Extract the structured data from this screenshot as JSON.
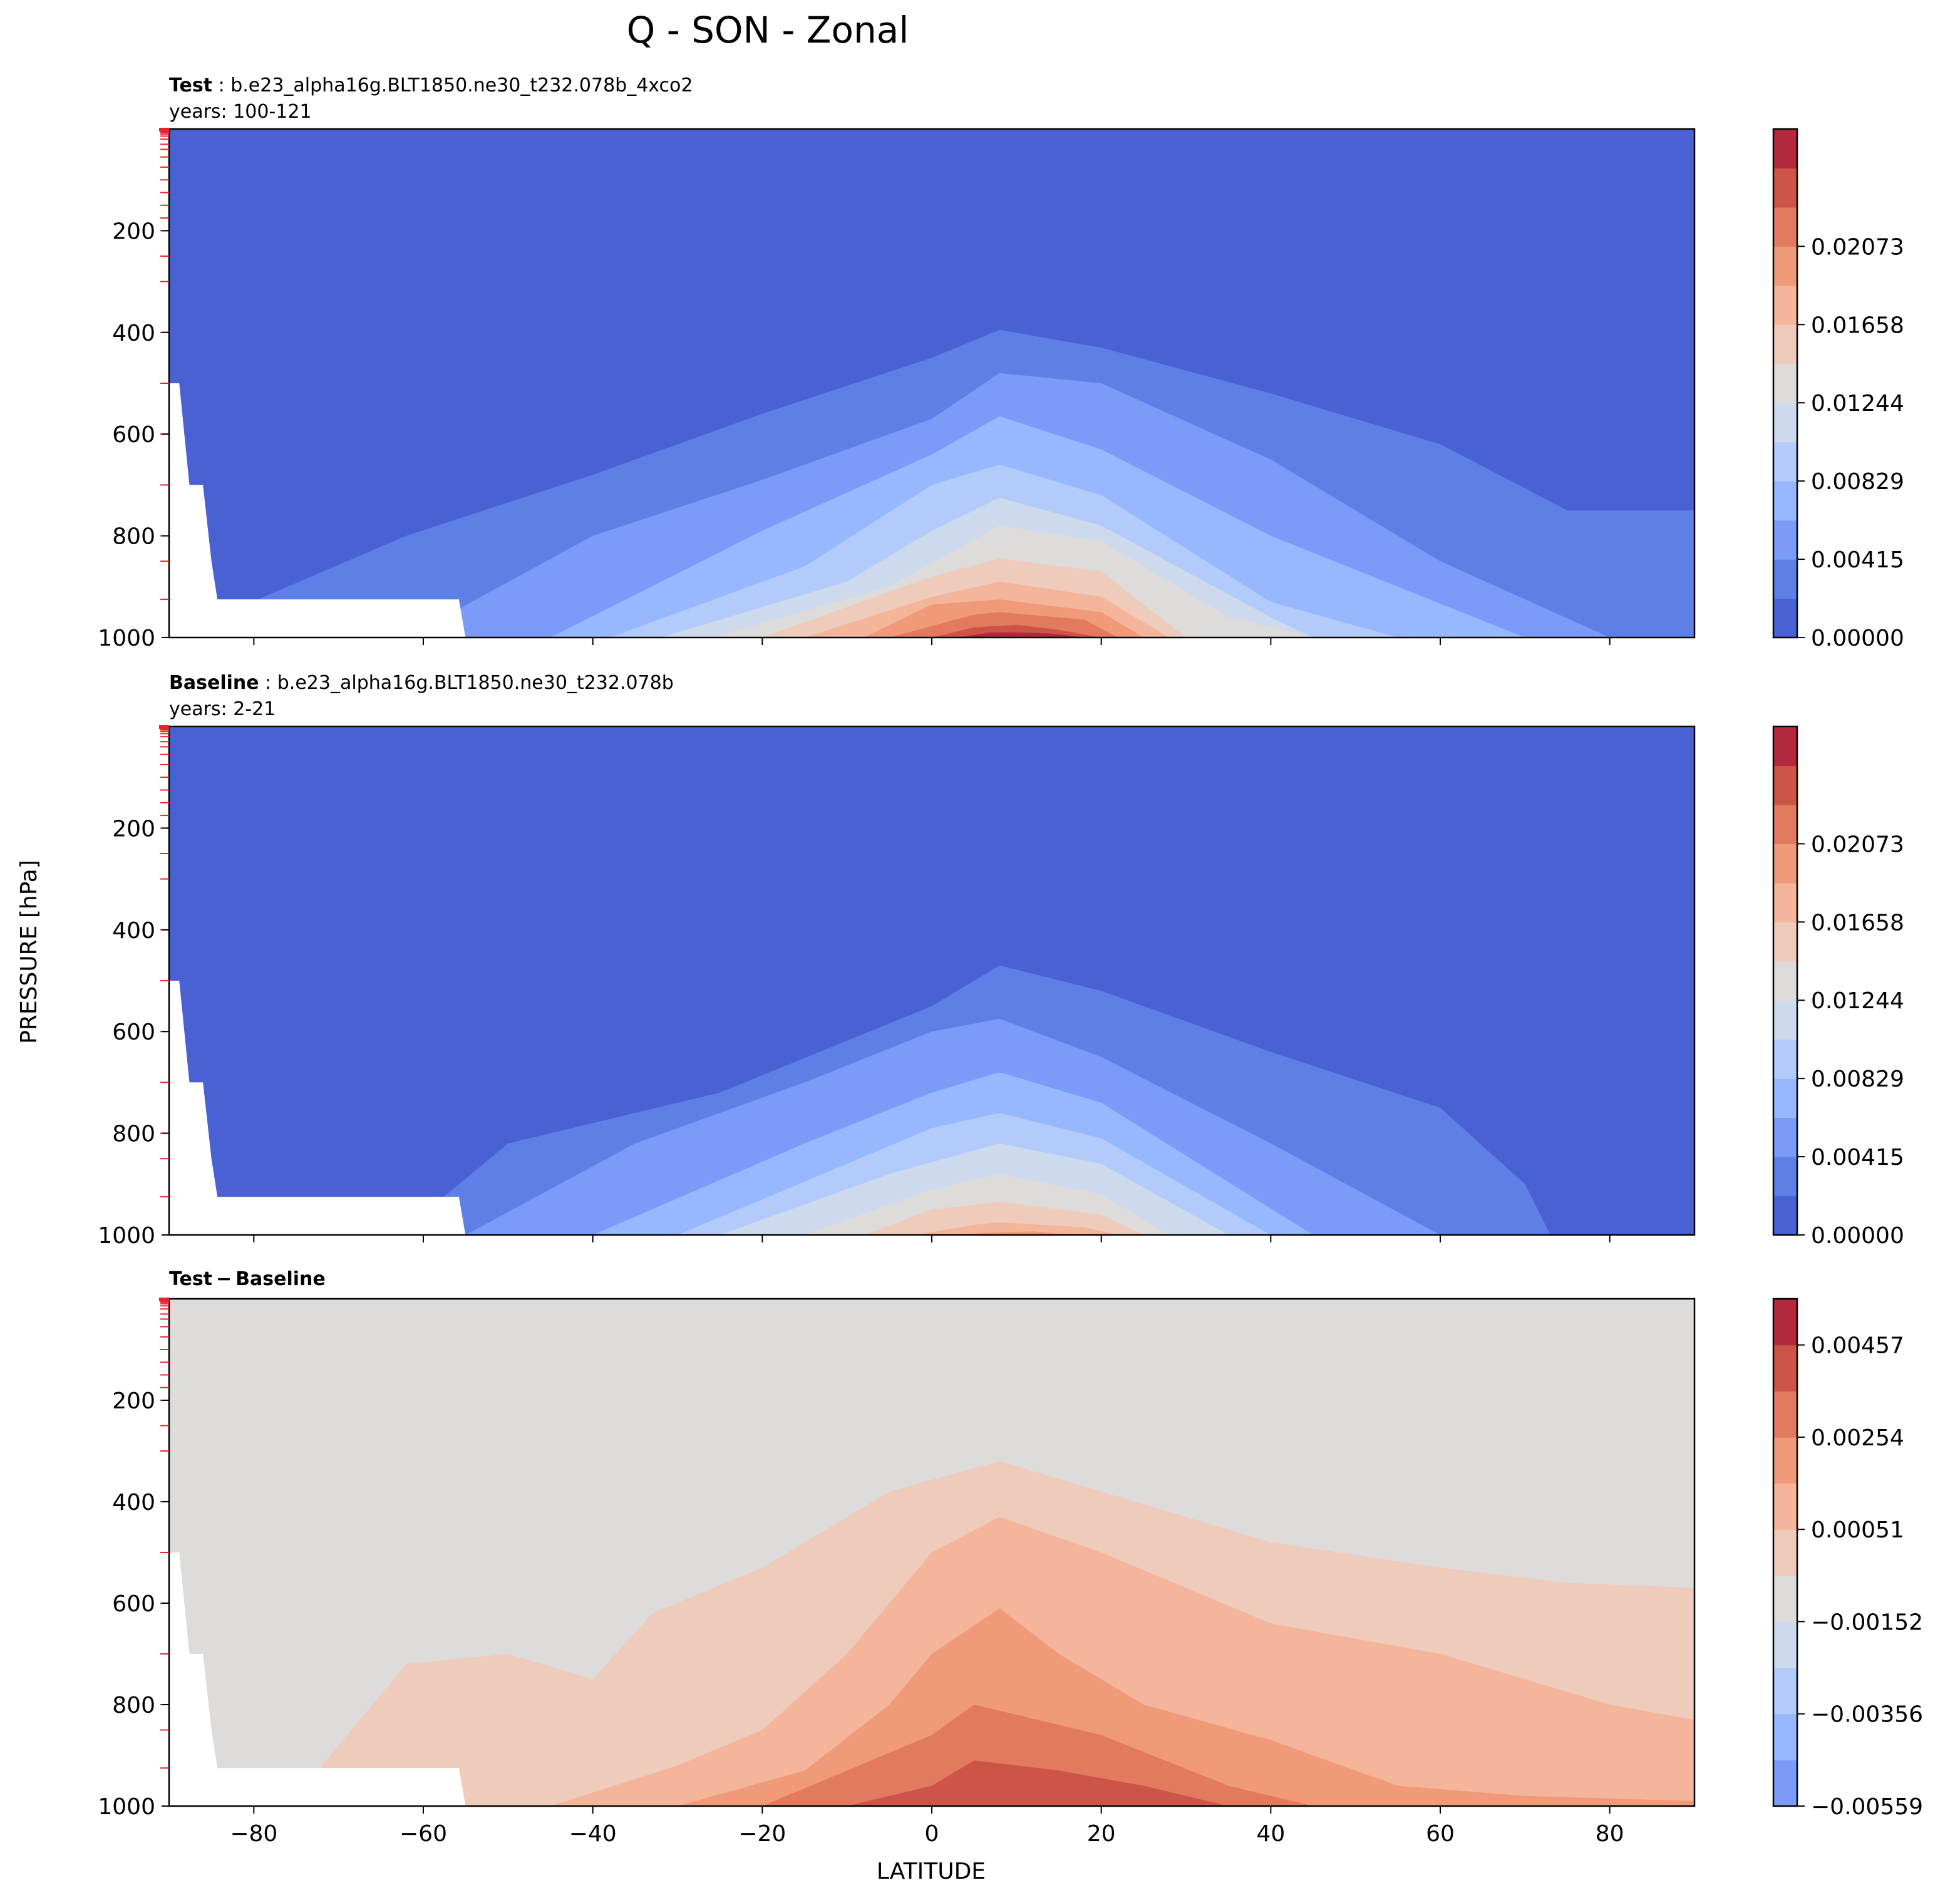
{
  "figure_title": "Q - SON - Zonal",
  "shared_ylabel": "PRESSURE [hPa]",
  "shared_xlabel": "LATITUDE",
  "colormap": [
    "#4961d2",
    "#5e80e6",
    "#7a9cf8",
    "#97b7ff",
    "#b3cbfb",
    "#cdd9ec",
    "#dddcdb",
    "#eecbbb",
    "#f5b59a",
    "#f09a7a",
    "#e17a5f",
    "#cc5548",
    "#b3283a"
  ],
  "chart_data": [
    {
      "type": "contour",
      "panel": "test",
      "title_bold": "Test",
      "title_rest": ": b.e23_alpha16g.BLT1850.ne30_t232.078b_4xco2",
      "subtitle": "years: 100-121",
      "x_ticks": [
        "−80",
        "−60",
        "−40",
        "−20",
        "0",
        "20",
        "40",
        "60",
        "80"
      ],
      "x_tick_values": [
        -80,
        -60,
        -40,
        -20,
        0,
        20,
        40,
        60,
        80
      ],
      "xlim": [
        -90,
        90
      ],
      "y_ticks": [
        "200",
        "400",
        "600",
        "800",
        "1000"
      ],
      "y_tick_values": [
        200,
        400,
        600,
        800,
        1000
      ],
      "ylim": [
        1000,
        0
      ],
      "colorbar_labels": [
        "0.00000",
        "0.00415",
        "0.00829",
        "0.01244",
        "0.01658",
        "0.02073"
      ],
      "level_count": 13,
      "contour_top_pressures": [
        {
          "level": 1,
          "lat": [
            -90,
            -62,
            -40,
            -20,
            0,
            8,
            20,
            40,
            60,
            75,
            90
          ],
          "p": [
            1000,
            800,
            680,
            560,
            450,
            395,
            430,
            520,
            620,
            750,
            750
          ]
        },
        {
          "level": 2,
          "lat": [
            -62,
            -40,
            -20,
            0,
            8,
            20,
            40,
            60,
            80,
            90
          ],
          "p": [
            1000,
            800,
            690,
            570,
            480,
            500,
            650,
            850,
            1000,
            1000
          ]
        },
        {
          "level": 3,
          "lat": [
            -45,
            -20,
            0,
            8,
            20,
            40,
            70
          ],
          "p": [
            1000,
            790,
            640,
            565,
            630,
            800,
            1000
          ]
        },
        {
          "level": 4,
          "lat": [
            -38,
            -15,
            0,
            8,
            20,
            40,
            55
          ],
          "p": [
            1000,
            860,
            700,
            660,
            720,
            930,
            1000
          ]
        },
        {
          "level": 5,
          "lat": [
            -32,
            -10,
            0,
            8,
            20,
            40,
            45
          ],
          "p": [
            1000,
            890,
            790,
            725,
            780,
            960,
            1000
          ]
        },
        {
          "level": 6,
          "lat": [
            -26,
            -5,
            8,
            20,
            35,
            45
          ],
          "p": [
            1000,
            900,
            780,
            810,
            960,
            1000
          ]
        },
        {
          "level": 7,
          "lat": [
            -20,
            0,
            8,
            20,
            30
          ],
          "p": [
            1000,
            880,
            845,
            870,
            1000
          ]
        },
        {
          "level": 8,
          "lat": [
            -15,
            0,
            8,
            20,
            28
          ],
          "p": [
            1000,
            920,
            890,
            920,
            1000
          ]
        },
        {
          "level": 9,
          "lat": [
            -8,
            0,
            8,
            20,
            25
          ],
          "p": [
            1000,
            935,
            925,
            950,
            1000
          ]
        },
        {
          "level": 10,
          "lat": [
            -5,
            5,
            8,
            18,
            22
          ],
          "p": [
            1000,
            955,
            950,
            965,
            1000
          ]
        },
        {
          "level": 11,
          "lat": [
            0,
            5,
            10,
            15,
            20
          ],
          "p": [
            1000,
            980,
            975,
            985,
            1000
          ]
        },
        {
          "level": 12,
          "lat": [
            3,
            7,
            10,
            14,
            18
          ],
          "p": [
            1000,
            990,
            990,
            992,
            1000
          ]
        }
      ]
    },
    {
      "type": "contour",
      "panel": "baseline",
      "title_bold": "Baseline",
      "title_rest": ": b.e23_alpha16g.BLT1850.ne30_t232.078b",
      "subtitle": "years: 2-21",
      "x_ticks": [
        "−80",
        "−60",
        "−40",
        "−20",
        "0",
        "20",
        "40",
        "60",
        "80"
      ],
      "x_tick_values": [
        -80,
        -60,
        -40,
        -20,
        0,
        20,
        40,
        60,
        80
      ],
      "xlim": [
        -90,
        90
      ],
      "y_ticks": [
        "200",
        "400",
        "600",
        "800",
        "1000"
      ],
      "y_tick_values": [
        200,
        400,
        600,
        800,
        1000
      ],
      "ylim": [
        1000,
        0
      ],
      "colorbar_labels": [
        "0.00000",
        "0.00415",
        "0.00829",
        "0.01244",
        "0.01658",
        "0.02073"
      ],
      "level_count": 13,
      "contour_top_pressures": [
        {
          "level": 1,
          "lat": [
            -63,
            -50,
            -25,
            0,
            8,
            20,
            40,
            60,
            70,
            73
          ],
          "p": [
            1000,
            820,
            720,
            550,
            470,
            520,
            640,
            750,
            900,
            1000
          ]
        },
        {
          "level": 2,
          "lat": [
            -55,
            -35,
            -15,
            0,
            8,
            20,
            40,
            60
          ],
          "p": [
            1000,
            820,
            700,
            600,
            575,
            650,
            820,
            1000
          ]
        },
        {
          "level": 3,
          "lat": [
            -40,
            -15,
            0,
            8,
            20,
            45
          ],
          "p": [
            1000,
            820,
            720,
            680,
            740,
            1000
          ]
        },
        {
          "level": 4,
          "lat": [
            -30,
            -10,
            0,
            8,
            20,
            40
          ],
          "p": [
            1000,
            860,
            790,
            760,
            810,
            1000
          ]
        },
        {
          "level": 5,
          "lat": [
            -25,
            -5,
            8,
            20,
            35
          ],
          "p": [
            1000,
            880,
            820,
            860,
            1000
          ]
        },
        {
          "level": 6,
          "lat": [
            -15,
            0,
            8,
            20,
            28
          ],
          "p": [
            1000,
            910,
            880,
            920,
            1000
          ]
        },
        {
          "level": 7,
          "lat": [
            -8,
            0,
            8,
            20,
            25
          ],
          "p": [
            1000,
            950,
            935,
            960,
            1000
          ]
        },
        {
          "level": 8,
          "lat": [
            -2,
            5,
            8,
            18,
            22
          ],
          "p": [
            1000,
            980,
            975,
            985,
            1000
          ]
        },
        {
          "level": 9,
          "lat": [
            3,
            7,
            12,
            16
          ],
          "p": [
            1000,
            995,
            993,
            1000
          ]
        }
      ]
    },
    {
      "type": "contour",
      "panel": "difference",
      "title_bold": "Test − Baseline",
      "title_rest": "",
      "subtitle": "",
      "x_ticks": [
        "−80",
        "−60",
        "−40",
        "−20",
        "0",
        "20",
        "40",
        "60",
        "80"
      ],
      "x_tick_values": [
        -80,
        -60,
        -40,
        -20,
        0,
        20,
        40,
        60,
        80
      ],
      "xlim": [
        -90,
        90
      ],
      "y_ticks": [
        "200",
        "400",
        "600",
        "800",
        "1000"
      ],
      "y_tick_values": [
        200,
        400,
        600,
        800,
        1000
      ],
      "ylim": [
        1000,
        0
      ],
      "colorbar_labels": [
        "−0.00559",
        "−0.00356",
        "−0.00152",
        "0.00051",
        "0.00254",
        "0.00457"
      ],
      "level_count": 11,
      "contour_top_pressures": [
        {
          "level": 7,
          "lat": [
            -72,
            -62,
            -50,
            -40,
            -33,
            -20,
            -5,
            8,
            20,
            40,
            60,
            75,
            90
          ],
          "p": [
            920,
            720,
            700,
            750,
            620,
            530,
            380,
            320,
            380,
            480,
            530,
            560,
            570
          ]
        },
        {
          "level": 8,
          "lat": [
            -45,
            -30,
            -20,
            -10,
            0,
            8,
            20,
            40,
            60,
            80,
            90
          ],
          "p": [
            1000,
            920,
            850,
            700,
            500,
            430,
            500,
            640,
            700,
            800,
            830
          ]
        },
        {
          "level": 9,
          "lat": [
            -30,
            -15,
            -5,
            0,
            8,
            15,
            25,
            40,
            55,
            70,
            90
          ],
          "p": [
            1000,
            930,
            800,
            700,
            610,
            700,
            800,
            870,
            960,
            980,
            990
          ]
        },
        {
          "level": 10,
          "lat": [
            -20,
            -10,
            0,
            5,
            20,
            35,
            45
          ],
          "p": [
            1000,
            930,
            860,
            800,
            860,
            960,
            1000
          ]
        },
        {
          "level": 11,
          "lat": [
            -10,
            0,
            5,
            15,
            25,
            35
          ],
          "p": [
            1000,
            960,
            910,
            930,
            960,
            1000
          ]
        }
      ]
    }
  ]
}
